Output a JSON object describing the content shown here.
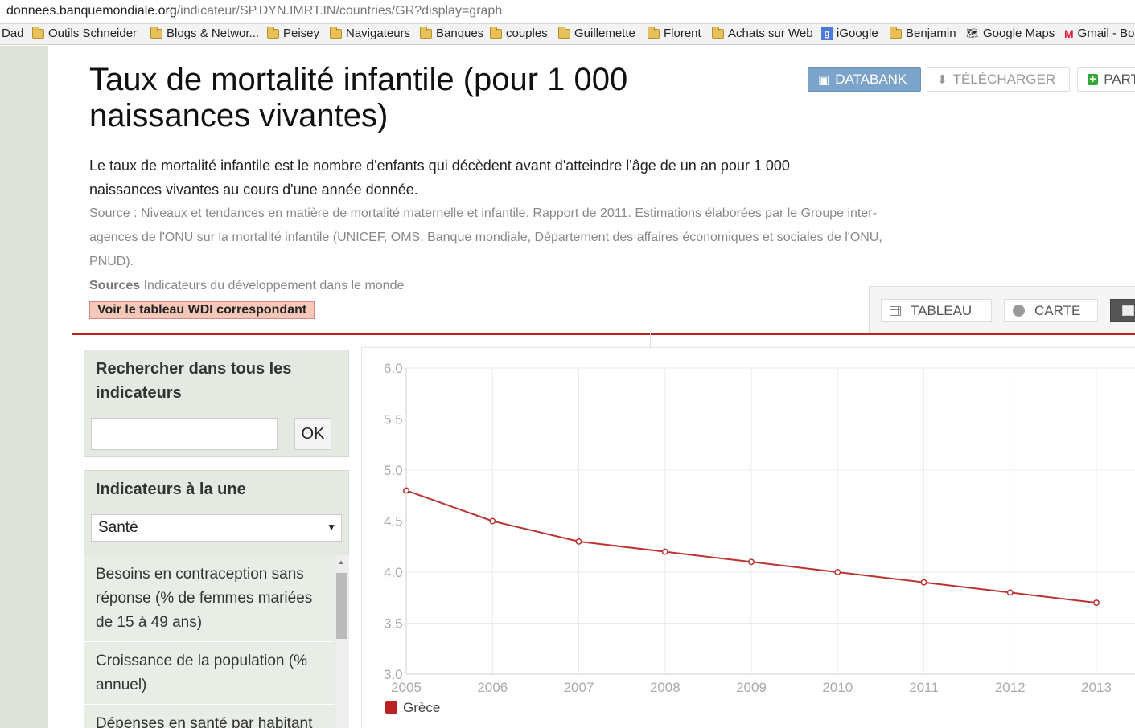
{
  "browser": {
    "url_domain": "donnees.banquemondiale.org",
    "url_path": "/indicateur/SP.DYN.IMRT.IN/countries/GR?display=graph",
    "bookmarks": [
      {
        "label": "Dad",
        "icon": "none"
      },
      {
        "label": "Outils Schneider",
        "icon": "folder-icon"
      },
      {
        "label": "Blogs & Networ...",
        "icon": "folder-icon"
      },
      {
        "label": "Peisey",
        "icon": "folder-icon"
      },
      {
        "label": "Navigateurs",
        "icon": "folder-icon"
      },
      {
        "label": "Banques",
        "icon": "folder-icon"
      },
      {
        "label": "couples",
        "icon": "folder-icon"
      },
      {
        "label": "Guillemette",
        "icon": "folder-icon"
      },
      {
        "label": "Florent",
        "icon": "folder-icon"
      },
      {
        "label": "Achats sur Web",
        "icon": "folder-icon"
      },
      {
        "label": "iGoogle",
        "icon": "google-icon"
      },
      {
        "label": "Benjamin",
        "icon": "folder-icon"
      },
      {
        "label": "Google Maps",
        "icon": "google-maps-icon"
      },
      {
        "label": "Gmail - Bo",
        "icon": "gmail-icon"
      }
    ]
  },
  "header": {
    "title": "Taux de mortalité infantile (pour 1 000 naissances vivantes)",
    "buttons": {
      "databank": "DATABANK",
      "telecharger": "TÉLÉCHARGER",
      "partager": "PART"
    }
  },
  "description": {
    "text": "Le taux de mortalité infantile est le nombre d'enfants qui décèdent avant d'atteindre l'âge de un an pour 1 000 naissances vivantes au cours d'une année donnée.",
    "source": "Source : Niveaux et tendances en matière de mortalité maternelle et infantile. Rapport de 2011. Estimations élaborées par le Groupe inter-agences de l'ONU sur la mortalité infantile (UNICEF, OMS, Banque mondiale, Département des affaires économiques et sociales de l'ONU, PNUD).",
    "sources_label": "Sources",
    "sources_value": "Indicateurs du développement dans le monde",
    "wdi_button": "Voir le tableau WDI correspondant"
  },
  "view_tabs": {
    "tableau": "TABLEAU",
    "carte": "CARTE"
  },
  "sidebar": {
    "search_heading": "Rechercher dans tous les indicateurs",
    "search_value": "",
    "ok_label": "OK",
    "featured_heading": "Indicateurs à la une",
    "selected_category": "Santé",
    "indicators": [
      {
        "label": "Besoins en contraception sans réponse (% de femmes mariées de 15 à 49 ans)"
      },
      {
        "label": "Croissance de la population (% annuel)"
      },
      {
        "label": "Dépenses en santé par habitant"
      }
    ]
  },
  "colors": {
    "series": "#bb3333",
    "accent_line": "#bb2222",
    "databank_button": "#7ca3c9"
  },
  "chart_data": {
    "type": "line",
    "x": [
      2005,
      2006,
      2007,
      2008,
      2009,
      2010,
      2011,
      2012,
      2013
    ],
    "xticks": [
      "2005",
      "2006",
      "2007",
      "2008",
      "2009",
      "2010",
      "2011",
      "2012",
      "2013"
    ],
    "series": [
      {
        "name": "Grèce",
        "values": [
          4.8,
          4.5,
          4.3,
          4.2,
          4.1,
          4.0,
          3.9,
          3.8,
          3.7
        ]
      }
    ],
    "ylim": [
      3.0,
      6.0
    ],
    "yticks": [
      "3.0",
      "3.5",
      "4.0",
      "4.5",
      "5.0",
      "5.5",
      "6.0"
    ],
    "grid": true,
    "legend_position": "bottom-left"
  }
}
